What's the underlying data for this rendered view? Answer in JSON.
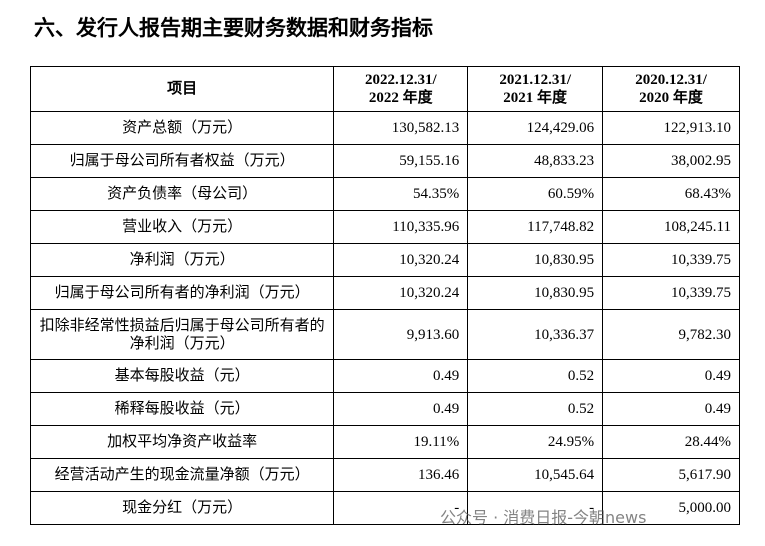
{
  "header": {
    "title": "六、发行人报告期主要财务数据和财务指标"
  },
  "table": {
    "columns": [
      "项目",
      "2022.12.31/\n2022 年度",
      "2021.12.31/\n2021 年度",
      "2020.12.31/\n2020 年度"
    ],
    "rows": [
      [
        "资产总额（万元）",
        "130,582.13",
        "124,429.06",
        "122,913.10"
      ],
      [
        "归属于母公司所有者权益（万元）",
        "59,155.16",
        "48,833.23",
        "38,002.95"
      ],
      [
        "资产负债率（母公司）",
        "54.35%",
        "60.59%",
        "68.43%"
      ],
      [
        "营业收入（万元）",
        "110,335.96",
        "117,748.82",
        "108,245.11"
      ],
      [
        "净利润（万元）",
        "10,320.24",
        "10,830.95",
        "10,339.75"
      ],
      [
        "归属于母公司所有者的净利润（万元）",
        "10,320.24",
        "10,830.95",
        "10,339.75"
      ],
      [
        "扣除非经常性损益后归属于母公司所有者的净利润（万元）",
        "9,913.60",
        "10,336.37",
        "9,782.30"
      ],
      [
        "基本每股收益（元）",
        "0.49",
        "0.52",
        "0.49"
      ],
      [
        "稀释每股收益（元）",
        "0.49",
        "0.52",
        "0.49"
      ],
      [
        "加权平均净资产收益率",
        "19.11%",
        "24.95%",
        "28.44%"
      ],
      [
        "经营活动产生的现金流量净额（万元）",
        "136.46",
        "10,545.64",
        "5,617.90"
      ],
      [
        "现金分红（万元）",
        "-",
        "-",
        "5,000.00"
      ]
    ]
  },
  "watermark": "公众号 · 消费日报-今朝news"
}
